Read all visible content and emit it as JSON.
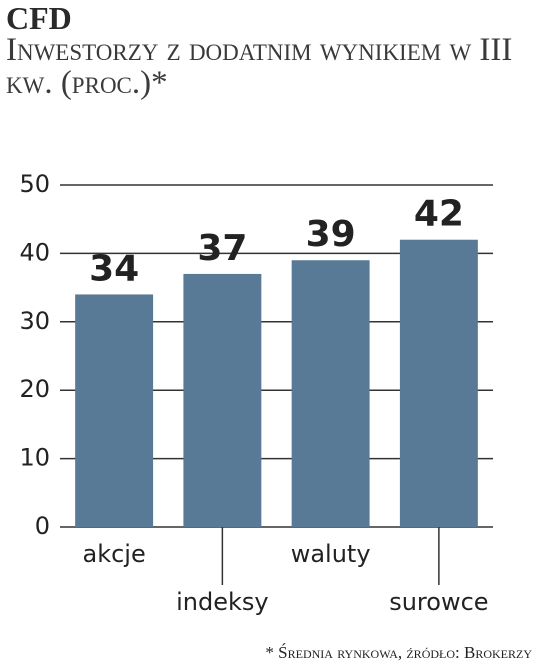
{
  "chart_data": {
    "type": "bar",
    "title": "CFD",
    "subtitle": "Inwestorzy z dodatnim wynikiem w III kw. (proc.)*",
    "categories": [
      "akcje",
      "indeksy",
      "waluty",
      "surowce"
    ],
    "values": [
      34,
      37,
      39,
      42
    ],
    "color": "#587a96",
    "ylim": [
      0,
      50
    ],
    "yticks": [
      0,
      10,
      20,
      30,
      40,
      50
    ],
    "grid": true,
    "note": "* Średnia rynkowa, źródło: Brokerzy"
  }
}
